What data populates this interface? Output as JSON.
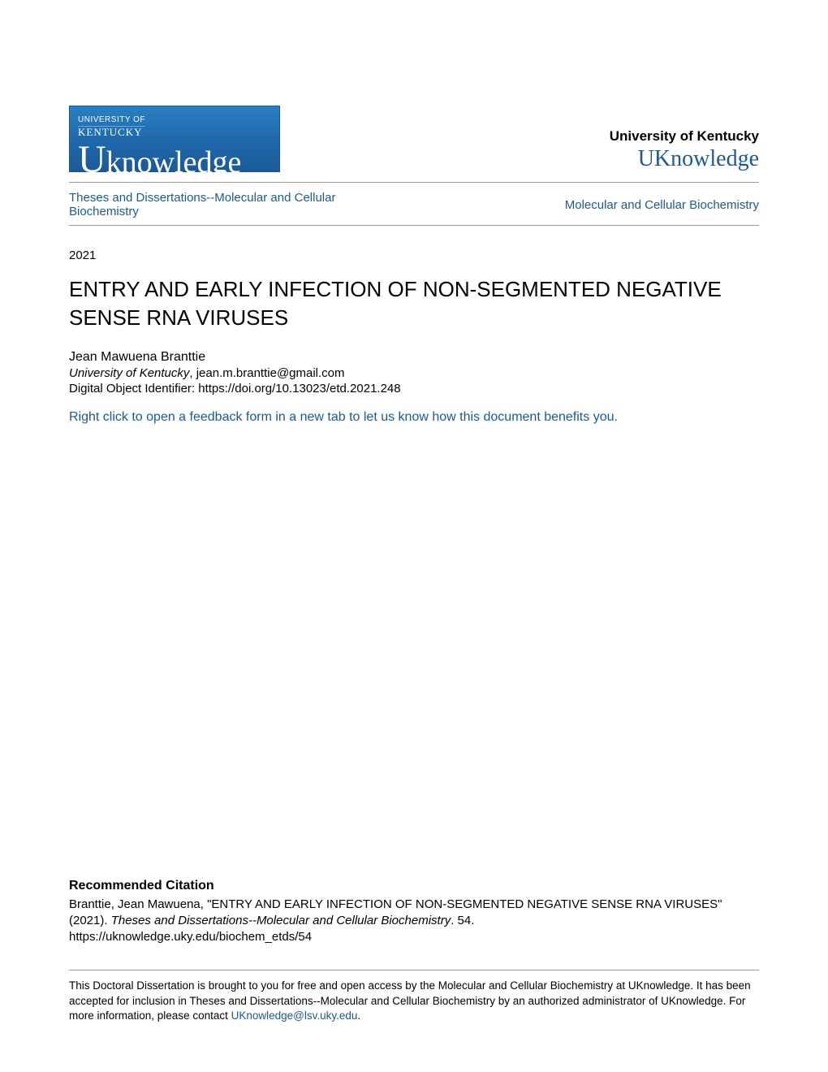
{
  "header": {
    "logo": {
      "topline": "UNIVERSITY OF",
      "kentucky": "KENTUCKY",
      "main_u": "U",
      "main_rest": "knowledge"
    },
    "university_name": "University of Kentucky",
    "uknowledge_link": "UKnowledge"
  },
  "nav": {
    "left": "Theses and Dissertations--Molecular and Cellular Biochemistry",
    "right": "Molecular and Cellular Biochemistry"
  },
  "year": "2021",
  "title": "ENTRY AND EARLY INFECTION OF NON-SEGMENTED NEGATIVE SENSE RNA VIRUSES",
  "author": {
    "name": "Jean Mawuena Branttie",
    "affiliation_italic": "University of Kentucky",
    "affiliation_rest": ", jean.m.branttie@gmail.com",
    "doi_label": "Digital Object Identifier: ",
    "doi_value": "https://doi.org/10.13023/etd.2021.248"
  },
  "feedback_link": "Right click to open a feedback form in a new tab to let us know how this document benefits you.",
  "citation": {
    "heading": "Recommended Citation",
    "text_pre": "Branttie, Jean Mawuena, \"ENTRY AND EARLY INFECTION OF NON-SEGMENTED NEGATIVE SENSE RNA VIRUSES\" (2021). ",
    "text_italic": "Theses and Dissertations--Molecular and Cellular Biochemistry",
    "text_post": ". 54.",
    "url": "https://uknowledge.uky.edu/biochem_etds/54"
  },
  "access": {
    "text_pre": "This Doctoral Dissertation is brought to you for free and open access by the Molecular and Cellular Biochemistry at UKnowledge. It has been accepted for inclusion in Theses and Dissertations--Molecular and Cellular Biochemistry by an authorized administrator of UKnowledge. For more information, please contact ",
    "email": "UKnowledge@lsv.uky.edu",
    "text_post": "."
  },
  "colors": {
    "link_blue": "#1a5a99",
    "text_black": "#000000",
    "hr_gray": "#999999",
    "logo_bg": "#1f6aad"
  }
}
